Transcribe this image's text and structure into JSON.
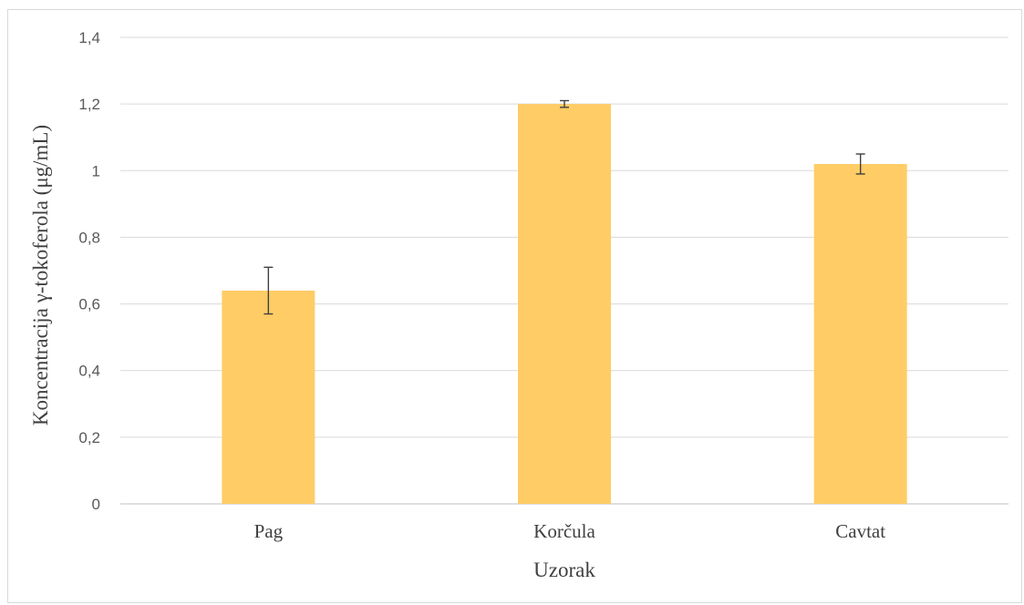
{
  "chart_data": {
    "type": "bar",
    "title": "",
    "xlabel": "Uzorak",
    "ylabel": "Koncentracija γ-tokoferola (μg/mL)",
    "ylim": [
      0,
      1.4
    ],
    "ytick_step": 0.2,
    "ytick_labels": [
      "0",
      "0,2",
      "0,4",
      "0,6",
      "0,8",
      "1",
      "1,2",
      "1,4"
    ],
    "categories": [
      "Pag",
      "Korčula",
      "Cavtat"
    ],
    "values": [
      0.64,
      1.2,
      1.02
    ],
    "errors": [
      0.07,
      0.01,
      0.03
    ],
    "bar_color": "#FFCC66",
    "grid": true,
    "legend": "none"
  }
}
